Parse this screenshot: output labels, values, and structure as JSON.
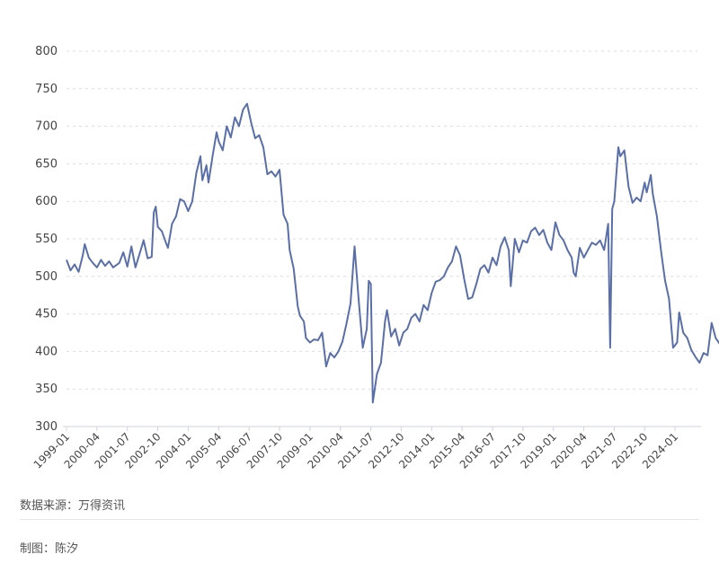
{
  "chart_data": {
    "type": "line",
    "title": "",
    "xlabel": "",
    "ylabel": "",
    "ylim": [
      300,
      800
    ],
    "yticks": [
      300,
      350,
      400,
      450,
      500,
      550,
      600,
      650,
      700,
      750,
      800
    ],
    "xlim": [
      "1999-01",
      "2024-12"
    ],
    "xtick_labels": [
      "1999-01",
      "2000-04",
      "2001-07",
      "2002-10",
      "2004-01",
      "2005-04",
      "2006-07",
      "2007-10",
      "2009-01",
      "2010-04",
      "2011-07",
      "2012-10",
      "2014-01",
      "2015-04",
      "2016-07",
      "2017-10",
      "2019-01",
      "2020-04",
      "2021-07",
      "2022-10",
      "2024-01"
    ],
    "grid": "horizontal dashed",
    "line_color": "#5a6fa8",
    "series": [
      {
        "points": [
          [
            "1999-01",
            522
          ],
          [
            "1999-03",
            508
          ],
          [
            "1999-05",
            516
          ],
          [
            "1999-07",
            506
          ],
          [
            "1999-09",
            528
          ],
          [
            "1999-10",
            543
          ],
          [
            "1999-12",
            525
          ],
          [
            "2000-02",
            518
          ],
          [
            "2000-04",
            512
          ],
          [
            "2000-06",
            522
          ],
          [
            "2000-08",
            514
          ],
          [
            "2000-10",
            520
          ],
          [
            "2000-12",
            512
          ],
          [
            "2001-03",
            518
          ],
          [
            "2001-05",
            532
          ],
          [
            "2001-07",
            513
          ],
          [
            "2001-09",
            540
          ],
          [
            "2001-11",
            512
          ],
          [
            "2002-01",
            530
          ],
          [
            "2002-03",
            548
          ],
          [
            "2002-05",
            524
          ],
          [
            "2002-07",
            526
          ],
          [
            "2002-08",
            585
          ],
          [
            "2002-09",
            593
          ],
          [
            "2002-10",
            566
          ],
          [
            "2002-12",
            560
          ],
          [
            "2003-02",
            545
          ],
          [
            "2003-03",
            538
          ],
          [
            "2003-05",
            570
          ],
          [
            "2003-07",
            580
          ],
          [
            "2003-09",
            603
          ],
          [
            "2003-11",
            600
          ],
          [
            "2004-01",
            587
          ],
          [
            "2004-03",
            600
          ],
          [
            "2004-05",
            638
          ],
          [
            "2004-07",
            660
          ],
          [
            "2004-08",
            628
          ],
          [
            "2004-10",
            648
          ],
          [
            "2004-11",
            625
          ],
          [
            "2005-01",
            660
          ],
          [
            "2005-03",
            692
          ],
          [
            "2005-04",
            680
          ],
          [
            "2005-06",
            668
          ],
          [
            "2005-08",
            700
          ],
          [
            "2005-10",
            685
          ],
          [
            "2005-12",
            712
          ],
          [
            "2006-02",
            700
          ],
          [
            "2006-04",
            722
          ],
          [
            "2006-06",
            730
          ],
          [
            "2006-08",
            705
          ],
          [
            "2006-10",
            684
          ],
          [
            "2006-12",
            688
          ],
          [
            "2007-02",
            672
          ],
          [
            "2007-04",
            636
          ],
          [
            "2007-06",
            640
          ],
          [
            "2007-08",
            633
          ],
          [
            "2007-10",
            642
          ],
          [
            "2007-12",
            582
          ],
          [
            "2008-02",
            570
          ],
          [
            "2008-03",
            535
          ],
          [
            "2008-05",
            510
          ],
          [
            "2008-07",
            460
          ],
          [
            "2008-08",
            448
          ],
          [
            "2008-10",
            440
          ],
          [
            "2008-11",
            418
          ],
          [
            "2009-01",
            412
          ],
          [
            "2009-03",
            416
          ],
          [
            "2009-05",
            415
          ],
          [
            "2009-07",
            425
          ],
          [
            "2009-09",
            380
          ],
          [
            "2009-11",
            398
          ],
          [
            "2010-01",
            392
          ],
          [
            "2010-03",
            400
          ],
          [
            "2010-05",
            413
          ],
          [
            "2010-07",
            437
          ],
          [
            "2010-09",
            464
          ],
          [
            "2010-11",
            540
          ],
          [
            "2011-01",
            470
          ],
          [
            "2011-03",
            405
          ],
          [
            "2011-05",
            430
          ],
          [
            "2011-06",
            494
          ],
          [
            "2011-07",
            490
          ],
          [
            "2011-08",
            332
          ],
          [
            "2011-10",
            370
          ],
          [
            "2011-12",
            385
          ],
          [
            "2012-02",
            440
          ],
          [
            "2012-03",
            455
          ],
          [
            "2012-05",
            420
          ],
          [
            "2012-07",
            430
          ],
          [
            "2012-09",
            408
          ],
          [
            "2012-11",
            425
          ],
          [
            "2013-01",
            430
          ],
          [
            "2013-03",
            445
          ],
          [
            "2013-05",
            450
          ],
          [
            "2013-07",
            440
          ],
          [
            "2013-09",
            462
          ],
          [
            "2013-11",
            455
          ],
          [
            "2014-01",
            478
          ],
          [
            "2014-03",
            493
          ],
          [
            "2014-05",
            495
          ],
          [
            "2014-07",
            500
          ],
          [
            "2014-09",
            512
          ],
          [
            "2014-11",
            520
          ],
          [
            "2015-01",
            540
          ],
          [
            "2015-03",
            528
          ],
          [
            "2015-05",
            497
          ],
          [
            "2015-07",
            470
          ],
          [
            "2015-09",
            472
          ],
          [
            "2015-11",
            490
          ],
          [
            "2016-01",
            510
          ],
          [
            "2016-03",
            515
          ],
          [
            "2016-05",
            505
          ],
          [
            "2016-07",
            525
          ],
          [
            "2016-09",
            515
          ],
          [
            "2016-11",
            540
          ],
          [
            "2017-01",
            552
          ],
          [
            "2017-03",
            535
          ],
          [
            "2017-04",
            487
          ],
          [
            "2017-06",
            550
          ],
          [
            "2017-08",
            532
          ],
          [
            "2017-10",
            548
          ],
          [
            "2017-12",
            545
          ],
          [
            "2018-02",
            560
          ],
          [
            "2018-04",
            565
          ],
          [
            "2018-06",
            555
          ],
          [
            "2018-08",
            562
          ],
          [
            "2018-10",
            545
          ],
          [
            "2018-12",
            535
          ],
          [
            "2019-02",
            572
          ],
          [
            "2019-04",
            555
          ],
          [
            "2019-06",
            548
          ],
          [
            "2019-08",
            535
          ],
          [
            "2019-10",
            525
          ],
          [
            "2019-11",
            505
          ],
          [
            "2019-12",
            500
          ],
          [
            "2020-02",
            538
          ],
          [
            "2020-04",
            525
          ],
          [
            "2020-06",
            535
          ],
          [
            "2020-08",
            545
          ],
          [
            "2020-10",
            542
          ],
          [
            "2020-12",
            548
          ],
          [
            "2021-02",
            535
          ],
          [
            "2021-04",
            570
          ],
          [
            "2021-05",
            405
          ],
          [
            "2021-06",
            590
          ],
          [
            "2021-07",
            600
          ],
          [
            "2021-09",
            672
          ],
          [
            "2021-10",
            660
          ],
          [
            "2021-12",
            668
          ],
          [
            "2022-02",
            620
          ],
          [
            "2022-04",
            598
          ],
          [
            "2022-06",
            605
          ],
          [
            "2022-08",
            600
          ],
          [
            "2022-10",
            625
          ],
          [
            "2022-11",
            612
          ],
          [
            "2023-01",
            635
          ],
          [
            "2023-02",
            610
          ],
          [
            "2023-04",
            580
          ],
          [
            "2023-06",
            535
          ],
          [
            "2023-08",
            495
          ],
          [
            "2023-10",
            470
          ],
          [
            "2023-12",
            405
          ],
          [
            "2024-02",
            412
          ],
          [
            "2024-03",
            452
          ],
          [
            "2024-05",
            425
          ],
          [
            "2024-07",
            418
          ],
          [
            "2024-09",
            402
          ],
          [
            "2024-11",
            393
          ],
          [
            "2025-01",
            385
          ],
          [
            "2025-03",
            398
          ],
          [
            "2025-05",
            395
          ],
          [
            "2025-07",
            438
          ],
          [
            "2025-09",
            418
          ],
          [
            "2025-11",
            410
          ],
          [
            "2026-01",
            390
          ]
        ]
      }
    ]
  },
  "footer": {
    "source": "数据来源：万得资讯",
    "author": "制图：陈汐"
  }
}
